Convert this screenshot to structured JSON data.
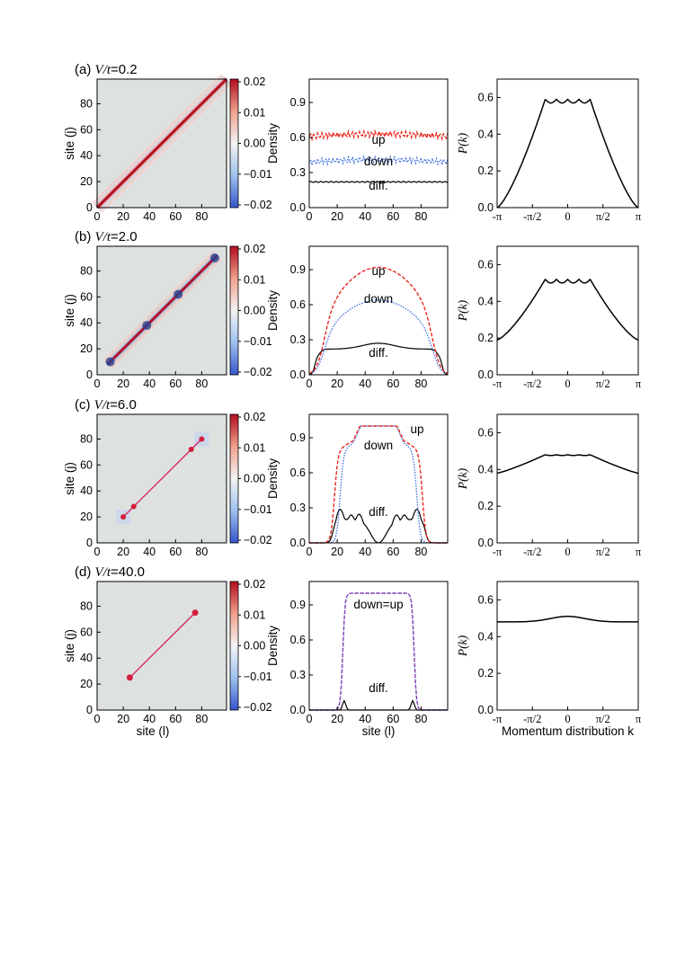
{
  "rows": [
    {
      "label": "(a) V/t=0.2",
      "heatmap": {
        "pattern": "band",
        "blobs": []
      },
      "density": {
        "up": {
          "label": "up",
          "profile": "flat",
          "level": 0.61
        },
        "down": {
          "label": "down",
          "profile": "flat",
          "level": 0.39
        },
        "diff": {
          "label": "diff.",
          "profile": "flat",
          "level": 0.22
        }
      },
      "pk": {
        "profile": "wide",
        "peak": 0.59
      }
    },
    {
      "label": "(b) V/t=2.0",
      "heatmap": {
        "pattern": "band_blobs",
        "blobs": [
          10,
          38,
          62,
          90
        ]
      },
      "density": {
        "up": {
          "label": "up",
          "profile": "dome",
          "peak": 0.92,
          "edge": 10,
          "steep": 6
        },
        "down": {
          "label": "down",
          "profile": "dome",
          "peak": 0.64,
          "edge": 10,
          "steep": 6
        },
        "diff": {
          "label": "diff.",
          "profile": "diff_b"
        }
      },
      "pk": {
        "profile": "wide",
        "peak": 0.52,
        "floor": 0.19
      }
    },
    {
      "label": "(c) V/t=6.0",
      "heatmap": {
        "pattern": "segment",
        "from": 20,
        "to": 80,
        "blobs": [
          20,
          28,
          72,
          80
        ]
      },
      "density": {
        "up": {
          "label": "up",
          "profile": "plateau",
          "peak": 1.0,
          "edge": 18
        },
        "down": {
          "label": "down",
          "profile": "plateau",
          "peak": 1.0,
          "edge": 22
        },
        "diff": {
          "label": "diff.",
          "profile": "diff_c"
        }
      },
      "pk": {
        "profile": "narrow",
        "peak": 0.48,
        "floor": 0.38
      }
    },
    {
      "label": "(d) V/t=40.0",
      "heatmap": {
        "pattern": "segment",
        "from": 25,
        "to": 75,
        "blobs": [
          25,
          75
        ]
      },
      "density": {
        "up": {
          "label": "down=up",
          "profile": "box",
          "peak": 1.0,
          "edge": 24
        },
        "down": {
          "label": "",
          "profile": "box",
          "peak": 1.0,
          "edge": 24
        },
        "diff": {
          "label": "diff.",
          "profile": "diff_d"
        }
      },
      "pk": {
        "profile": "bump",
        "peak": 0.51,
        "floor": 0.48
      }
    }
  ],
  "axes": {
    "heat_y_label": "site (j)",
    "heat_x_label": "site (l)",
    "heat_ticks": [
      "0",
      "20",
      "40",
      "60",
      "80"
    ],
    "cbar_ticks": [
      "0.02",
      "0.01",
      "0.00",
      "−0.01",
      "−0.02"
    ],
    "dens_y_label": "Density",
    "dens_x_label": "site (l)",
    "dens_yticks": [
      "0.0",
      "0.3",
      "0.6",
      "0.9"
    ],
    "dens_xticks": [
      "0",
      "20",
      "40",
      "60",
      "80"
    ],
    "pk_y_label": "P(k)",
    "pk_yticks": [
      "0.0",
      "0.2",
      "0.4",
      "0.6"
    ],
    "pk_xticks": [
      "-π",
      "-π/2",
      "0",
      "π/2",
      "π"
    ],
    "pk_x_label": "Momentum distribution k"
  },
  "chart_data": {
    "type": "line",
    "title": "",
    "colors": {
      "up": "#e8281e",
      "down": "#3a6de0",
      "diff": "#000000",
      "heat_bg": "#dde2e0",
      "band": "#b0102a"
    },
    "density_x_range": [
      0,
      99
    ],
    "density_y_range": [
      0,
      1.1
    ],
    "pk_x_range": [
      -3.1416,
      3.1416
    ],
    "pk_y_range": [
      0,
      0.7
    ],
    "heat_range": [
      0,
      99
    ],
    "colorbar_range": [
      -0.02,
      0.02
    ]
  }
}
